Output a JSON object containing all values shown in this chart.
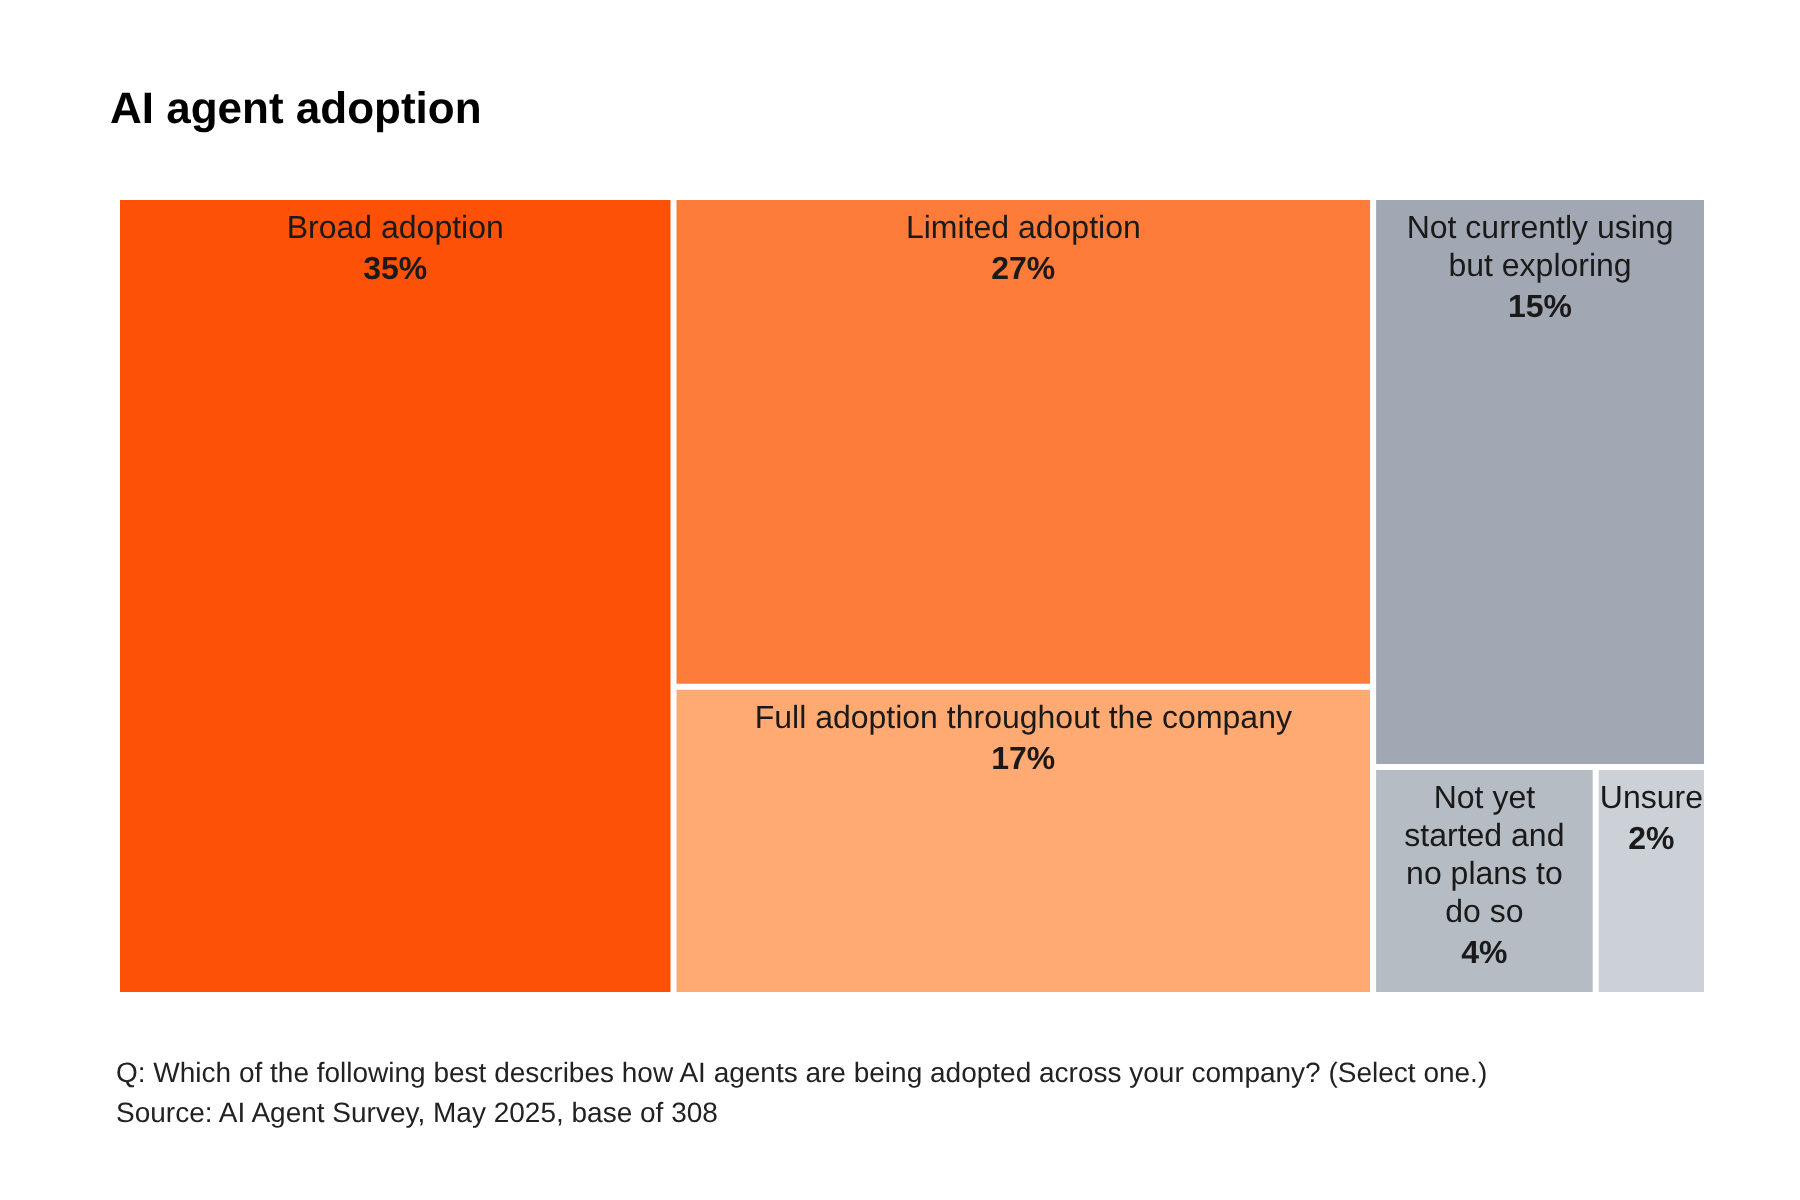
{
  "chart_data": {
    "type": "other",
    "title": "AI agent adoption",
    "categories": [
      "Broad adoption",
      "Limited adoption",
      "Full adoption throughout the company",
      "Not currently using but exploring",
      "Not yet started and no plans to do so",
      "Unsure"
    ],
    "values": [
      35,
      27,
      17,
      15,
      4,
      2
    ],
    "value_labels": [
      "35%",
      "27%",
      "17%",
      "15%",
      "4%",
      "2%"
    ],
    "colors": [
      "#fd5108",
      "#fe7c39",
      "#ffaa72",
      "#a1a8b3",
      "#b5bcc4",
      "#cbd1d6"
    ],
    "annotations": [
      "Q: Which of the following best describes how AI agents are being adopted across your company? (Select one.)",
      "Source: AI Agent Survey, May 2025, base of 308"
    ]
  }
}
